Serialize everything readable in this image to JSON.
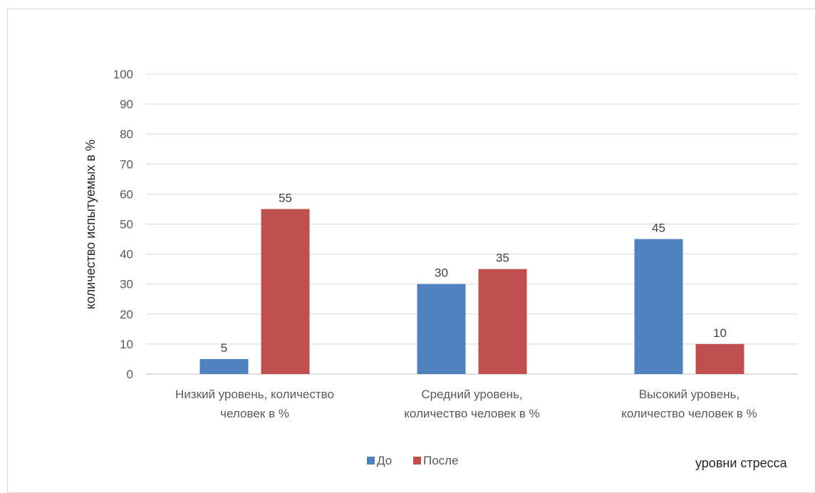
{
  "chart_data": {
    "type": "bar",
    "categories": [
      [
        "Низкий уровень, количество",
        "человек в %"
      ],
      [
        "Средний уровень,",
        "количество человек в %"
      ],
      [
        "Высокий уровень,",
        "количество человек в %"
      ]
    ],
    "series": [
      {
        "name": "До",
        "values": [
          5,
          30,
          45
        ],
        "color": "#4f81bd"
      },
      {
        "name": "После",
        "values": [
          55,
          35,
          10
        ],
        "color": "#c0504d"
      }
    ],
    "ylabel": "количество испытуемых в %",
    "xlabel": "уровни стресса",
    "ylim": [
      0,
      100
    ],
    "yticks": [
      0,
      10,
      20,
      30,
      40,
      50,
      60,
      70,
      80,
      90,
      100
    ],
    "grid": true,
    "legend": "bottom"
  }
}
